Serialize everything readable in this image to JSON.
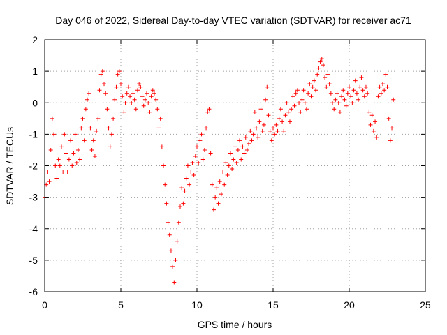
{
  "chart_data": {
    "type": "scatter",
    "title": "Day 046 of 2022, Sidereal Day-to-day VTEC variation (SDTVAR) for receiver ac71",
    "xlabel": "GPS time / hours",
    "ylabel": "SDTVAR / TECUs",
    "xlim": [
      0,
      25
    ],
    "ylim": [
      -6,
      2
    ],
    "x_ticks": [
      0,
      5,
      10,
      15,
      20,
      25
    ],
    "y_ticks": [
      -6,
      -5,
      -4,
      -3,
      -2,
      -1,
      0,
      1,
      2
    ],
    "x_tick_labels": [
      "0",
      "5",
      "10",
      "15",
      "20",
      "25"
    ],
    "y_tick_labels": [
      "-6",
      "-5",
      "-4",
      "-3",
      "-2",
      "-1",
      "0",
      "1",
      "2"
    ],
    "grid": true,
    "marker": "plus",
    "color": "#ff0000",
    "series": [
      {
        "name": "SDTVAR",
        "points": [
          [
            0.0,
            -3.0
          ],
          [
            0.1,
            -2.6
          ],
          [
            0.2,
            -2.2
          ],
          [
            0.3,
            -2.5
          ],
          [
            0.4,
            -1.5
          ],
          [
            0.5,
            -0.5
          ],
          [
            0.6,
            -1.0
          ],
          [
            0.7,
            -2.0
          ],
          [
            0.8,
            -2.4
          ],
          [
            0.9,
            -1.8
          ],
          [
            1.0,
            -2.0
          ],
          [
            1.1,
            -1.4
          ],
          [
            1.2,
            -2.2
          ],
          [
            1.3,
            -1.0
          ],
          [
            1.4,
            -1.6
          ],
          [
            1.5,
            -2.2
          ],
          [
            1.6,
            -1.8
          ],
          [
            1.7,
            -1.2
          ],
          [
            1.8,
            -2.0
          ],
          [
            1.9,
            -1.6
          ],
          [
            2.0,
            -1.0
          ],
          [
            2.1,
            -1.9
          ],
          [
            2.2,
            -1.5
          ],
          [
            2.3,
            -1.8
          ],
          [
            2.4,
            -0.8
          ],
          [
            2.5,
            -0.5
          ],
          [
            2.6,
            -1.2
          ],
          [
            2.7,
            -0.2
          ],
          [
            2.8,
            0.1
          ],
          [
            2.9,
            0.3
          ],
          [
            3.0,
            -0.8
          ],
          [
            3.1,
            -1.5
          ],
          [
            3.2,
            -1.2
          ],
          [
            3.3,
            -1.7
          ],
          [
            3.4,
            -0.9
          ],
          [
            3.5,
            -0.5
          ],
          [
            3.6,
            0.4
          ],
          [
            3.7,
            0.9
          ],
          [
            3.8,
            1.0
          ],
          [
            3.9,
            0.6
          ],
          [
            4.0,
            0.3
          ],
          [
            4.1,
            -0.2
          ],
          [
            4.2,
            -0.8
          ],
          [
            4.3,
            -1.4
          ],
          [
            4.4,
            -1.0
          ],
          [
            4.5,
            -0.5
          ],
          [
            4.6,
            0.1
          ],
          [
            4.7,
            0.5
          ],
          [
            4.8,
            0.9
          ],
          [
            4.9,
            1.0
          ],
          [
            5.0,
            0.6
          ],
          [
            5.1,
            0.2
          ],
          [
            5.2,
            -0.3
          ],
          [
            5.3,
            0.0
          ],
          [
            5.4,
            0.3
          ],
          [
            5.5,
            0.5
          ],
          [
            5.6,
            0.2
          ],
          [
            5.7,
            0.0
          ],
          [
            5.8,
            0.3
          ],
          [
            5.9,
            0.1
          ],
          [
            6.0,
            -0.2
          ],
          [
            6.1,
            0.4
          ],
          [
            6.2,
            0.6
          ],
          [
            6.3,
            0.5
          ],
          [
            6.4,
            0.2
          ],
          [
            6.5,
            -0.1
          ],
          [
            6.6,
            0.1
          ],
          [
            6.7,
            0.3
          ],
          [
            6.8,
            0.0
          ],
          [
            6.9,
            -0.3
          ],
          [
            7.0,
            0.2
          ],
          [
            7.1,
            0.4
          ],
          [
            7.2,
            0.3
          ],
          [
            7.3,
            0.1
          ],
          [
            7.4,
            -0.2
          ],
          [
            7.5,
            -0.8
          ],
          [
            7.6,
            -0.5
          ],
          [
            7.7,
            -1.4
          ],
          [
            7.8,
            -2.0
          ],
          [
            7.9,
            -2.6
          ],
          [
            8.0,
            -3.2
          ],
          [
            8.1,
            -3.8
          ],
          [
            8.2,
            -4.2
          ],
          [
            8.3,
            -4.7
          ],
          [
            8.4,
            -5.2
          ],
          [
            8.5,
            -5.7
          ],
          [
            8.6,
            -5.0
          ],
          [
            8.7,
            -4.4
          ],
          [
            8.8,
            -3.8
          ],
          [
            8.9,
            -3.3
          ],
          [
            9.0,
            -2.7
          ],
          [
            9.1,
            -3.2
          ],
          [
            9.2,
            -2.8
          ],
          [
            9.3,
            -2.4
          ],
          [
            9.4,
            -2.0
          ],
          [
            9.5,
            -2.6
          ],
          [
            9.6,
            -2.2
          ],
          [
            9.7,
            -1.9
          ],
          [
            9.8,
            -2.3
          ],
          [
            9.9,
            -1.7
          ],
          [
            10.0,
            -1.4
          ],
          [
            10.1,
            -1.9
          ],
          [
            10.2,
            -1.2
          ],
          [
            10.3,
            -1.0
          ],
          [
            10.4,
            -1.8
          ],
          [
            10.5,
            -1.5
          ],
          [
            10.6,
            -0.8
          ],
          [
            10.7,
            -0.3
          ],
          [
            10.8,
            -0.2
          ],
          [
            10.9,
            -1.6
          ],
          [
            11.0,
            -2.6
          ],
          [
            11.1,
            -3.4
          ],
          [
            11.2,
            -3.0
          ],
          [
            11.3,
            -2.7
          ],
          [
            11.4,
            -3.2
          ],
          [
            11.5,
            -2.5
          ],
          [
            11.6,
            -2.9
          ],
          [
            11.7,
            -2.2
          ],
          [
            11.8,
            -2.6
          ],
          [
            11.9,
            -1.9
          ],
          [
            12.0,
            -2.3
          ],
          [
            12.1,
            -2.0
          ],
          [
            12.2,
            -1.6
          ],
          [
            12.3,
            -2.1
          ],
          [
            12.4,
            -1.8
          ],
          [
            12.5,
            -1.4
          ],
          [
            12.6,
            -1.9
          ],
          [
            12.7,
            -1.5
          ],
          [
            12.8,
            -1.2
          ],
          [
            12.9,
            -1.8
          ],
          [
            13.0,
            -1.4
          ],
          [
            13.1,
            -1.6
          ],
          [
            13.2,
            -1.1
          ],
          [
            13.3,
            -1.5
          ],
          [
            13.4,
            -1.3
          ],
          [
            13.5,
            -0.9
          ],
          [
            13.6,
            -1.2
          ],
          [
            13.7,
            -1.0
          ],
          [
            13.8,
            -0.3
          ],
          [
            13.9,
            -0.8
          ],
          [
            14.0,
            -1.1
          ],
          [
            14.1,
            -0.6
          ],
          [
            14.2,
            -0.2
          ],
          [
            14.3,
            -0.9
          ],
          [
            14.4,
            -0.7
          ],
          [
            14.5,
            0.1
          ],
          [
            14.6,
            0.5
          ],
          [
            14.7,
            -0.4
          ],
          [
            14.8,
            -0.9
          ],
          [
            14.9,
            -1.2
          ],
          [
            15.0,
            -0.8
          ],
          [
            15.1,
            -1.0
          ],
          [
            15.2,
            -0.7
          ],
          [
            15.3,
            -0.9
          ],
          [
            15.4,
            -0.5
          ],
          [
            15.5,
            -0.2
          ],
          [
            15.6,
            -0.6
          ],
          [
            15.7,
            -0.9
          ],
          [
            15.8,
            -0.4
          ],
          [
            15.9,
            0.0
          ],
          [
            16.0,
            -0.3
          ],
          [
            16.1,
            -0.6
          ],
          [
            16.2,
            -0.2
          ],
          [
            16.3,
            0.2
          ],
          [
            16.4,
            -0.1
          ],
          [
            16.5,
            0.3
          ],
          [
            16.6,
            0.4
          ],
          [
            16.7,
            0.0
          ],
          [
            16.8,
            -0.3
          ],
          [
            16.9,
            0.1
          ],
          [
            17.0,
            0.4
          ],
          [
            17.1,
            0.0
          ],
          [
            17.2,
            -0.2
          ],
          [
            17.3,
            0.3
          ],
          [
            17.4,
            0.6
          ],
          [
            17.5,
            0.2
          ],
          [
            17.6,
            0.5
          ],
          [
            17.7,
            0.7
          ],
          [
            17.8,
            0.4
          ],
          [
            17.9,
            0.9
          ],
          [
            18.0,
            1.1
          ],
          [
            18.1,
            1.3
          ],
          [
            18.2,
            1.4
          ],
          [
            18.3,
            1.2
          ],
          [
            18.4,
            0.8
          ],
          [
            18.5,
            0.5
          ],
          [
            18.6,
            0.9
          ],
          [
            18.7,
            0.6
          ],
          [
            18.8,
            0.3
          ],
          [
            18.9,
            0.0
          ],
          [
            19.0,
            -0.2
          ],
          [
            19.1,
            0.1
          ],
          [
            19.2,
            0.3
          ],
          [
            19.3,
            0.0
          ],
          [
            19.4,
            -0.3
          ],
          [
            19.5,
            0.2
          ],
          [
            19.6,
            0.4
          ],
          [
            19.7,
            0.1
          ],
          [
            19.8,
            -0.1
          ],
          [
            19.9,
            0.3
          ],
          [
            20.0,
            0.5
          ],
          [
            20.1,
            0.2
          ],
          [
            20.2,
            0.0
          ],
          [
            20.3,
            0.4
          ],
          [
            20.4,
            0.7
          ],
          [
            20.5,
            0.3
          ],
          [
            20.6,
            0.1
          ],
          [
            20.7,
            0.5
          ],
          [
            20.8,
            0.8
          ],
          [
            20.9,
            0.4
          ],
          [
            21.0,
            0.2
          ],
          [
            21.1,
            0.5
          ],
          [
            21.2,
            0.3
          ],
          [
            21.3,
            -0.3
          ],
          [
            21.4,
            -0.7
          ],
          [
            21.5,
            -0.4
          ],
          [
            21.6,
            -0.9
          ],
          [
            21.7,
            -0.6
          ],
          [
            21.8,
            -1.1
          ],
          [
            21.9,
            0.2
          ],
          [
            22.0,
            0.5
          ],
          [
            22.1,
            0.3
          ],
          [
            22.2,
            0.6
          ],
          [
            22.3,
            0.4
          ],
          [
            22.4,
            0.9
          ],
          [
            22.5,
            0.5
          ],
          [
            22.6,
            -0.5
          ],
          [
            22.7,
            -1.2
          ],
          [
            22.8,
            -0.8
          ],
          [
            22.9,
            0.1
          ]
        ]
      }
    ]
  }
}
